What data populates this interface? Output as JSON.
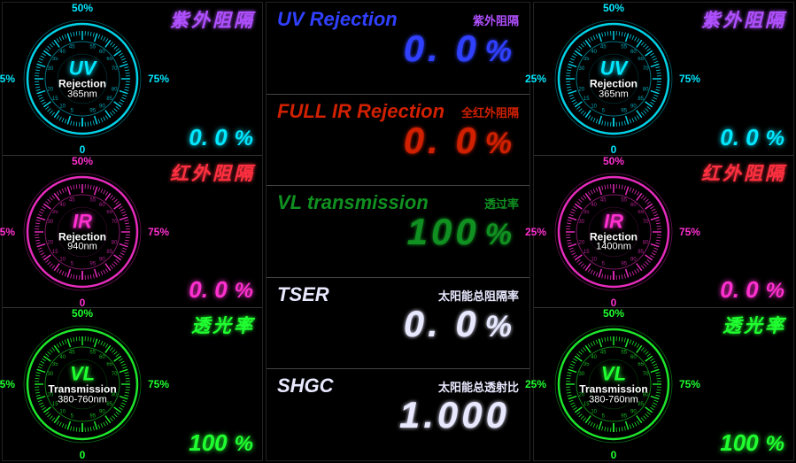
{
  "tick_labels": {
    "top": "50%",
    "right": "75%",
    "bottom": "0",
    "left": "25%"
  },
  "left_panel": {
    "gauges": [
      {
        "key": "uv",
        "label_cn": "紫外阻隔",
        "center_big": "UV",
        "center_mid": "Rejection",
        "center_small": "365nm",
        "value": "0. 0",
        "unit": "%",
        "color": "#00e8ff",
        "label_color": "#b050ff",
        "outline_color": "#00e8ff"
      },
      {
        "key": "ir",
        "label_cn": "红外阻隔",
        "center_big": "IR",
        "center_mid": "Rejection",
        "center_small": "940nm",
        "value": "0. 0",
        "unit": "%",
        "color": "#ff30d0",
        "label_color": "#ff3040",
        "outline_color": "#ff30d0"
      },
      {
        "key": "vl",
        "label_cn": "透光率",
        "center_big": "VL",
        "center_mid": "Transmission",
        "center_small": "380-760nm",
        "value": "100",
        "unit": "%",
        "color": "#20ff30",
        "label_color": "#20ff30",
        "outline_color": "#20ff30"
      }
    ]
  },
  "right_panel": {
    "gauges": [
      {
        "key": "uv",
        "label_cn": "紫外阻隔",
        "center_big": "UV",
        "center_mid": "Rejection",
        "center_small": "365nm",
        "value": "0. 0",
        "unit": "%",
        "color": "#00e8ff",
        "label_color": "#b050ff",
        "outline_color": "#00e8ff"
      },
      {
        "key": "ir",
        "label_cn": "红外阻隔",
        "center_big": "IR",
        "center_mid": "Rejection",
        "center_small": "1400nm",
        "value": "0. 0",
        "unit": "%",
        "color": "#ff30d0",
        "label_color": "#ff3040",
        "outline_color": "#ff30d0"
      },
      {
        "key": "vl",
        "label_cn": "透光率",
        "center_big": "VL",
        "center_mid": "Transmission",
        "center_small": "380-760nm",
        "value": "100",
        "unit": "%",
        "color": "#20ff30",
        "label_color": "#20ff30",
        "outline_color": "#20ff30"
      }
    ]
  },
  "mid_panel": {
    "rows": [
      {
        "title": "UV Rejection",
        "cn": "紫外阻隔",
        "value": "0. 0",
        "unit": "%",
        "color": "#3040ff",
        "cn_color": "#b050ff"
      },
      {
        "title": "FULL IR Rejection",
        "cn": "全红外阻隔",
        "value": "0. 0",
        "unit": "%",
        "color": "#d02000",
        "cn_color": "#d02000"
      },
      {
        "title": "VL transmission",
        "cn": "透过率",
        "value": "100",
        "unit": "%",
        "color": "#109020",
        "cn_color": "#109020"
      },
      {
        "title": "TSER",
        "cn": "太阳能总阻隔率",
        "value": "0. 0",
        "unit": "%",
        "color": "#e8e8ff",
        "cn_color": "#e8e8ff"
      },
      {
        "title": "SHGC",
        "cn": "太阳能总透射比",
        "value": "1.000",
        "unit": "",
        "color": "#e8e8ff",
        "cn_color": "#e8e8ff"
      }
    ]
  },
  "gauge_style": {
    "radius_outer": 62,
    "radius_ticks": 54,
    "n_major_ticks": 20,
    "n_minor_per_major": 1,
    "background": "#000000"
  }
}
